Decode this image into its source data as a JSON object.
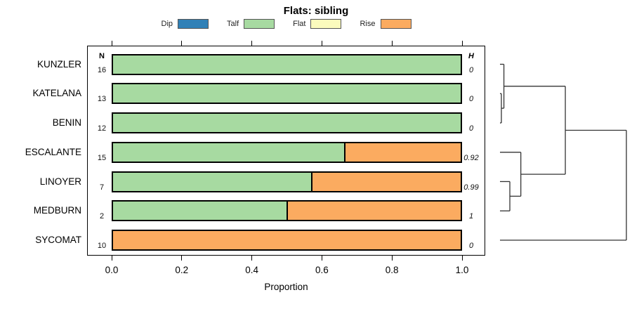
{
  "title": "Flats: sibling",
  "legend": {
    "items": [
      {
        "label": "Dip",
        "color": "#3181B7"
      },
      {
        "label": "Talf",
        "color": "#A7DAA1"
      },
      {
        "label": "Flat",
        "color": "#FBFBBD"
      },
      {
        "label": "Rise",
        "color": "#FBAB60"
      }
    ]
  },
  "table": {
    "n_header": "N",
    "h_header": "H"
  },
  "axis": {
    "xlabel": "Proportion",
    "tick_labels": [
      "0.0",
      "0.2",
      "0.4",
      "0.6",
      "0.8",
      "1.0"
    ]
  },
  "chart_data": {
    "type": "bar",
    "orientation": "horizontal",
    "stacked": true,
    "title": "Flats: sibling",
    "xlabel": "Proportion",
    "xlim": [
      0,
      1
    ],
    "grid": false,
    "categories": [
      "KUNZLER",
      "KATELANA",
      "BENIN",
      "ESCALANTE",
      "LINOYER",
      "MEDBURN",
      "SYCOMAT"
    ],
    "series": [
      {
        "name": "Dip",
        "color": "#3181B7",
        "values": [
          0,
          0,
          0,
          0,
          0,
          0,
          0
        ]
      },
      {
        "name": "Talf",
        "color": "#A7DAA1",
        "values": [
          1,
          1,
          1,
          0.667,
          0.571,
          0.5,
          0
        ]
      },
      {
        "name": "Flat",
        "color": "#FBFBBD",
        "values": [
          0,
          0,
          0,
          0,
          0,
          0,
          0
        ]
      },
      {
        "name": "Rise",
        "color": "#FBAB60",
        "values": [
          0,
          0,
          0,
          0.333,
          0.429,
          0.5,
          1
        ]
      }
    ],
    "n_values": [
      16,
      13,
      12,
      15,
      7,
      2,
      10
    ],
    "h_values": [
      "0",
      "0",
      "0",
      "0.92",
      "0.99",
      "1",
      "0"
    ],
    "dendrogram": {
      "leaves": [
        "KUNZLER",
        "KATELANA",
        "BENIN",
        "ESCALANTE",
        "LINOYER",
        "MEDBURN",
        "SYCOMAT"
      ],
      "merges": [
        {
          "a": "L1",
          "b": "L2",
          "h": 0.011
        },
        {
          "a": "L0",
          "b": "M0",
          "h": 0.031
        },
        {
          "a": "L4",
          "b": "L5",
          "h": 0.078
        },
        {
          "a": "L3",
          "b": "M2",
          "h": 0.165
        },
        {
          "a": "M1",
          "b": "M3",
          "h": 0.517
        },
        {
          "a": "M4",
          "b": "L6",
          "h": 1.0
        }
      ]
    }
  }
}
